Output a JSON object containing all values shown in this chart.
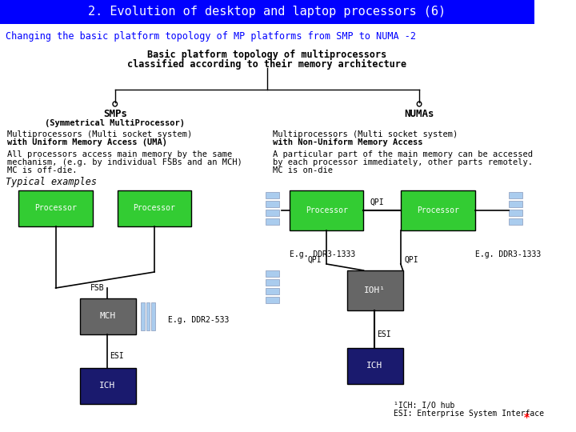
{
  "title": "2. Evolution of desktop and laptop processors (6)",
  "subtitle": "Changing the basic platform topology of MP platforms from SMP to NUMA -2",
  "tree_title_line1": "Basic platform topology of multiprocessors",
  "tree_title_line2": "classified according to their memory architecture",
  "smp_label": "SMPs",
  "smp_sublabel": "(Symmetrical MultiProcessor)",
  "numa_label": "NUMAs",
  "smp_desc_line1": "Multiprocessors (Multi socket system)",
  "smp_desc_line2": "with Uniform Memory Access (UMA)",
  "numa_desc_line1": "Multiprocessors (Multi socket system)",
  "numa_desc_line2": "with Non-Uniform Memory Access",
  "smp_detail_line1": "All processors access main memory by the same",
  "smp_detail_line2": "mechanism, (e.g. by individual FSBs and an MCH)",
  "smp_detail_line3": "MC is off-die.",
  "numa_detail_line1": "A particular part of the main memory can be accessed",
  "numa_detail_line2": "by each processor immediately, other parts remotely.",
  "numa_detail_line3": "MC is on-die",
  "typical_examples": "Typical examples",
  "header_bg": "#0000FF",
  "header_fg": "#FFFFFF",
  "bg_color": "#FFFFFF",
  "green_color": "#33CC33",
  "dark_gray_color": "#666666",
  "navy_color": "#1a1a6e",
  "processor_text": "Processor",
  "mch_text": "MCH",
  "ich_left_text": "ICH",
  "ich_right_text": "ICH",
  "ioh_text": "IOH¹",
  "fsb_text": "FSB",
  "esi_left": "ESI",
  "esi_right": "ESI",
  "qpi_h": "QPI",
  "qpi_v1": "QPI",
  "qpi_v2": "QPI",
  "eg_ddr2": "E.g. DDR2-533",
  "eg_ddr3_left": "E.g. DDR3-1333",
  "eg_ddr3_right": "E.g. DDR3-1333",
  "footnote1": "¹ICH: I/O hub",
  "footnote2": "ESI: Enterprise System Interface"
}
